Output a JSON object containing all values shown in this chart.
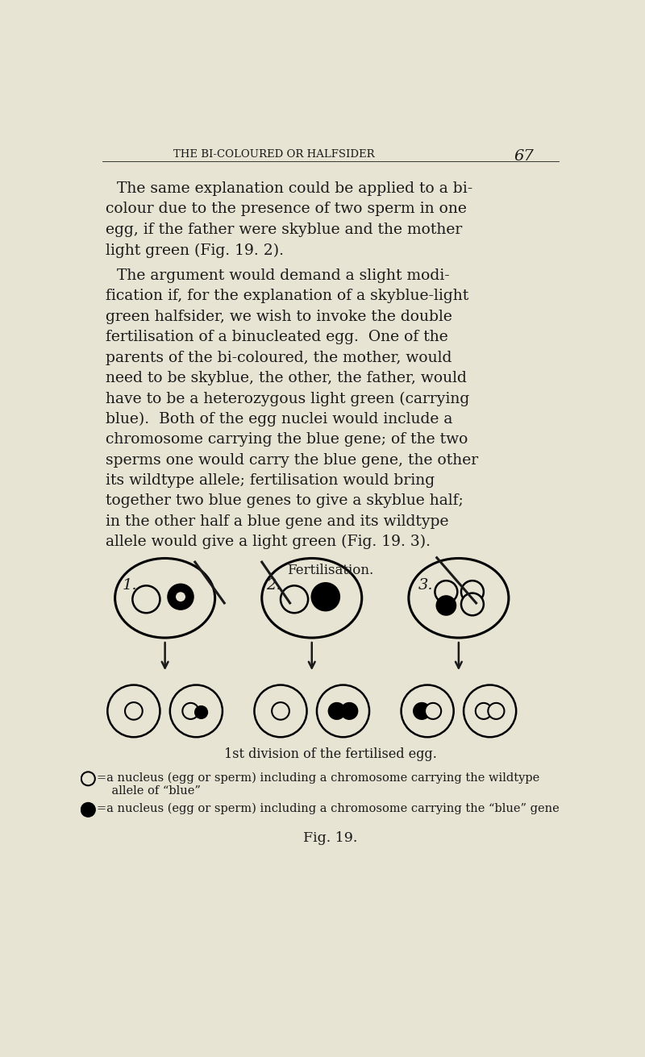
{
  "bg_color": "#e8e4d4",
  "text_color": "#1a1a1a",
  "page_header": "THE BI-COLOURED OR HALFSIDER",
  "page_number": "67",
  "fertilisation_label": "Fertilisation.",
  "division_label": "1st division of the fertilised egg.",
  "legend1": "=a nucleus (egg or sperm) including a chromosome carrying the wildtype\n    allele of “blue”",
  "legend2": "=a nucleus (egg or sperm) including a chromosome carrying the “blue” gene",
  "fig_label": "Fig. 19.",
  "para1_lines": [
    "The same explanation could be applied to a bi-",
    "colour due to the presence of two sperm in one",
    "egg, if the father were skyblue and the mother",
    "light green (Fig. 19. 2)."
  ],
  "para2_lines": [
    "The argument would demand a slight modi-",
    "fication if, for the explanation of a skyblue-light",
    "green halfsider, we wish to invoke the double",
    "fertilisation of a binucleated egg.  One of the",
    "parents of the bi-coloured, the mother, would",
    "need to be skyblue, the other, the father, would",
    "have to be a heterozygous light green (carrying",
    "blue).  Both of the egg nuclei would include a",
    "chromosome carrying the blue gene; of the two",
    "sperms one would carry the blue gene, the other",
    "its wildtype allele; fertilisation would bring",
    "together two blue genes to give a skyblue half;",
    "in the other half a blue gene and its wildtype",
    "allele would give a light green (Fig. 19. 3)."
  ],
  "figsize": [
    8.0,
    13.11
  ],
  "dpi": 100
}
